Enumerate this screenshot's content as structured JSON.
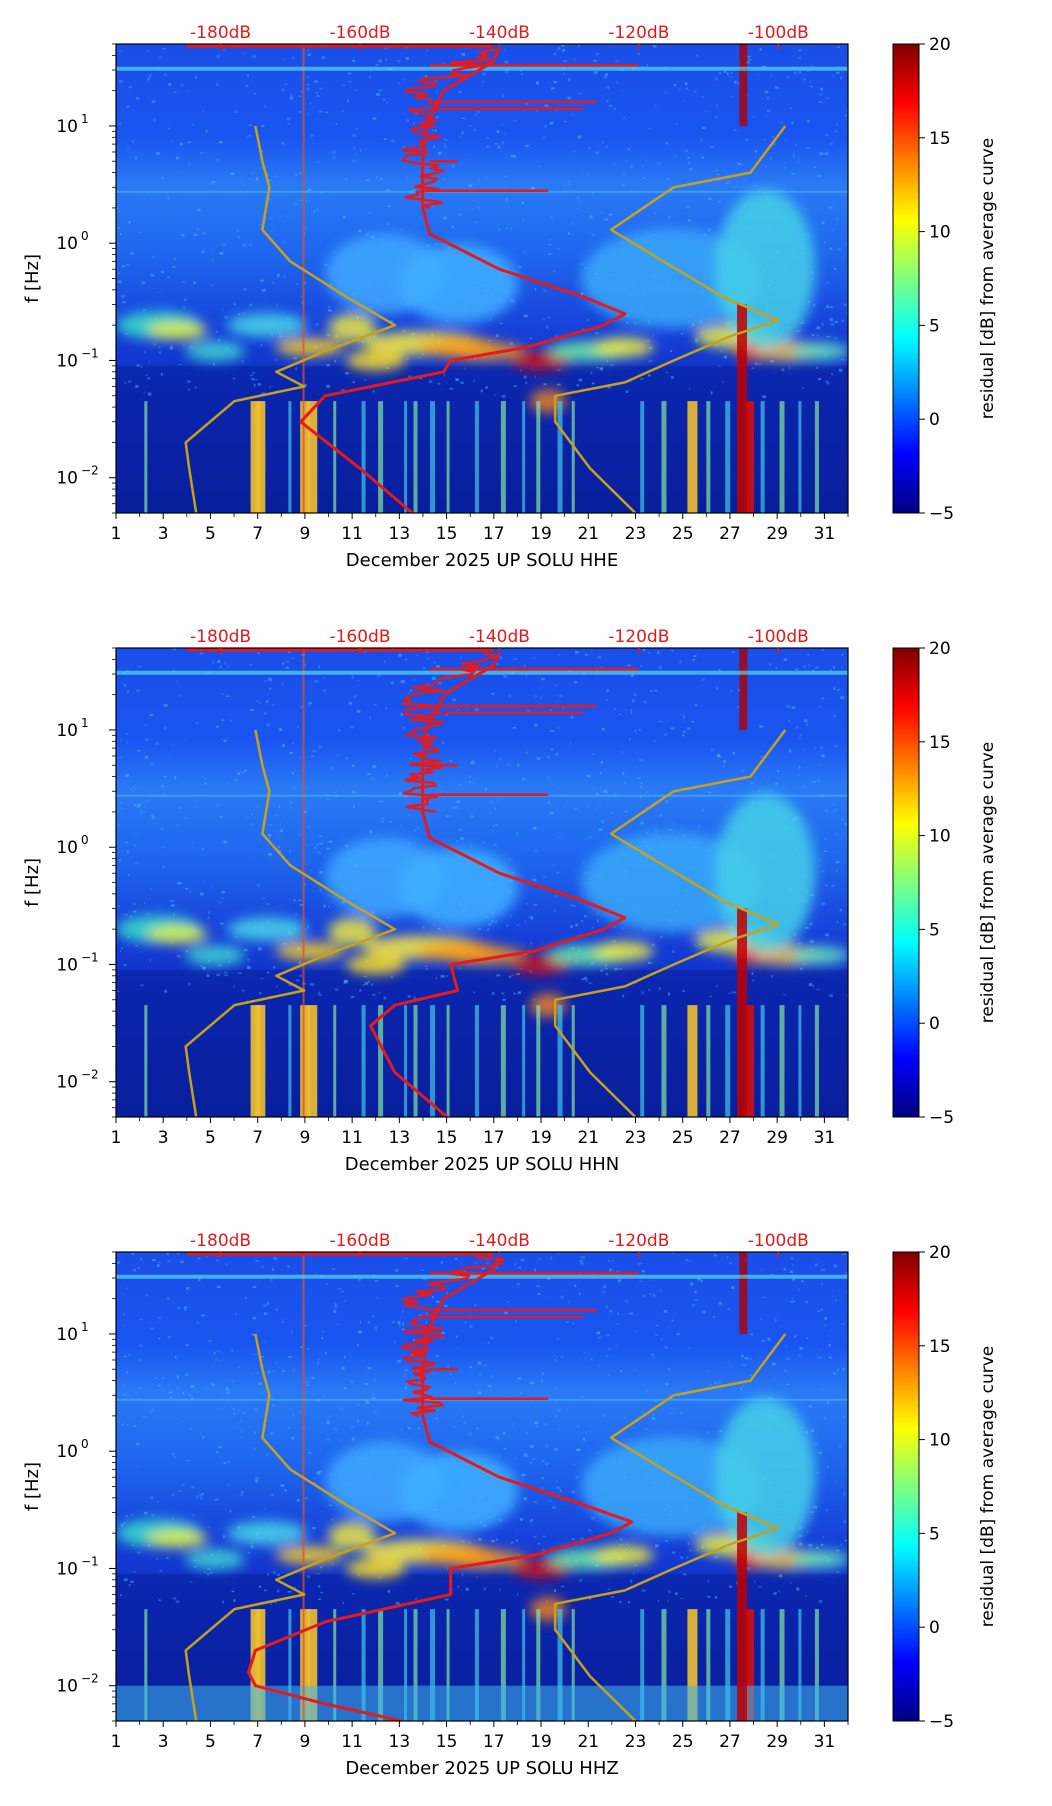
{
  "chart_data": [
    {
      "type": "heatmap",
      "title": "",
      "xlabel": "December 2025 UP SOLU  HHE",
      "ylabel": "f [Hz]",
      "x_ticks": [
        "1",
        "3",
        "5",
        "7",
        "9",
        "11",
        "13",
        "15",
        "17",
        "19",
        "21",
        "23",
        "25",
        "27",
        "29",
        "31"
      ],
      "xlim": [
        1,
        32
      ],
      "ylim": [
        0.005,
        50
      ],
      "y_scale": "log",
      "y_ticks": [
        {
          "base": "10",
          "exp": "−2",
          "value": 0.01
        },
        {
          "base": "10",
          "exp": "−1",
          "value": 0.1
        },
        {
          "base": "10",
          "exp": "0",
          "value": 1
        },
        {
          "base": "10",
          "exp": "1",
          "value": 10
        }
      ],
      "top_axis_labels": [
        "-180dB",
        "-160dB",
        "-140dB",
        "-120dB",
        "-100dB"
      ],
      "colorbar": {
        "label": "residual [dB] from average curve",
        "min": -5,
        "max": 20,
        "ticks": [
          "20",
          "15",
          "10",
          "5",
          "0",
          "−5"
        ],
        "colormap": "jet"
      },
      "series": [
        {
          "name": "average PSD curve (red)",
          "color": "#e41a1c",
          "x_units": "dB",
          "points": [
            {
              "db": -152.5,
              "f": 0.005
            },
            {
              "db": -160,
              "f": 0.012
            },
            {
              "db": -168.5,
              "f": 0.03
            },
            {
              "db": -165,
              "f": 0.05
            },
            {
              "db": -148,
              "f": 0.08
            },
            {
              "db": -147,
              "f": 0.1
            },
            {
              "db": -136,
              "f": 0.13
            },
            {
              "db": -125,
              "f": 0.2
            },
            {
              "db": -122,
              "f": 0.25
            },
            {
              "db": -128,
              "f": 0.35
            },
            {
              "db": -140,
              "f": 0.6
            },
            {
              "db": -150,
              "f": 1.2
            },
            {
              "db": -151,
              "f": 2
            },
            {
              "db": -151,
              "f": 5
            },
            {
              "db": -150.5,
              "f": 10
            },
            {
              "db": -148,
              "f": 20
            },
            {
              "db": -141,
              "f": 35
            },
            {
              "db": -140,
              "f": 45
            }
          ]
        },
        {
          "name": "noise model (olive)",
          "color": "#c4a21e",
          "x_units": "dB",
          "points": [
            {
              "db": -183.5,
              "f": 0.005
            },
            {
              "db": -184.5,
              "f": 0.012
            },
            {
              "db": -185,
              "f": 0.02
            },
            {
              "db": -178,
              "f": 0.045
            },
            {
              "db": -168,
              "f": 0.06
            },
            {
              "db": -172,
              "f": 0.08
            },
            {
              "db": -165,
              "f": 0.12
            },
            {
              "db": -155,
              "f": 0.2
            },
            {
              "db": -162,
              "f": 0.35
            },
            {
              "db": -170,
              "f": 0.7
            },
            {
              "db": -174,
              "f": 1.3
            },
            {
              "db": -173,
              "f": 3
            },
            {
              "db": -174,
              "f": 5
            },
            {
              "db": -175,
              "f": 10
            }
          ]
        },
        {
          "name": "noise model upper (olive)",
          "color": "#c4a21e",
          "x_units": "dB",
          "points": [
            {
              "db": -120.5,
              "f": 0.005
            },
            {
              "db": -127,
              "f": 0.012
            },
            {
              "db": -132,
              "f": 0.03
            },
            {
              "db": -132,
              "f": 0.05
            },
            {
              "db": -122,
              "f": 0.065
            },
            {
              "db": -115,
              "f": 0.1
            },
            {
              "db": -107,
              "f": 0.16
            },
            {
              "db": -100,
              "f": 0.22
            },
            {
              "db": -108,
              "f": 0.35
            },
            {
              "db": -124,
              "f": 1.3
            },
            {
              "db": -115,
              "f": 3
            },
            {
              "db": -104,
              "f": 4
            },
            {
              "db": -99,
              "f": 10
            }
          ]
        }
      ]
    },
    {
      "type": "heatmap",
      "title": "",
      "xlabel": "December 2025 UP SOLU  HHN",
      "ylabel": "f [Hz]",
      "x_ticks": [
        "1",
        "3",
        "5",
        "7",
        "9",
        "11",
        "13",
        "15",
        "17",
        "19",
        "21",
        "23",
        "25",
        "27",
        "29",
        "31"
      ],
      "xlim": [
        1,
        32
      ],
      "ylim": [
        0.005,
        50
      ],
      "y_scale": "log",
      "y_ticks": [
        {
          "base": "10",
          "exp": "−2",
          "value": 0.01
        },
        {
          "base": "10",
          "exp": "−1",
          "value": 0.1
        },
        {
          "base": "10",
          "exp": "0",
          "value": 1
        },
        {
          "base": "10",
          "exp": "1",
          "value": 10
        }
      ],
      "top_axis_labels": [
        "-180dB",
        "-160dB",
        "-140dB",
        "-120dB",
        "-100dB"
      ],
      "colorbar": {
        "label": "residual [dB] from average curve",
        "min": -5,
        "max": 20,
        "ticks": [
          "20",
          "15",
          "10",
          "5",
          "0",
          "−5"
        ],
        "colormap": "jet"
      },
      "series": [
        {
          "name": "average PSD curve (red)",
          "color": "#e41a1c",
          "x_units": "dB",
          "points": [
            {
              "db": -147.5,
              "f": 0.005
            },
            {
              "db": -155,
              "f": 0.012
            },
            {
              "db": -158.5,
              "f": 0.03
            },
            {
              "db": -155,
              "f": 0.045
            },
            {
              "db": -146,
              "f": 0.06
            },
            {
              "db": -147,
              "f": 0.1
            },
            {
              "db": -135,
              "f": 0.13
            },
            {
              "db": -125,
              "f": 0.2
            },
            {
              "db": -122,
              "f": 0.25
            },
            {
              "db": -128,
              "f": 0.35
            },
            {
              "db": -140,
              "f": 0.6
            },
            {
              "db": -150,
              "f": 1.2
            },
            {
              "db": -151,
              "f": 2
            },
            {
              "db": -151,
              "f": 5
            },
            {
              "db": -150.5,
              "f": 10
            },
            {
              "db": -148,
              "f": 20
            },
            {
              "db": -141,
              "f": 35
            },
            {
              "db": -140,
              "f": 45
            }
          ]
        },
        {
          "name": "noise model (olive)",
          "color": "#c4a21e",
          "x_units": "dB",
          "points": [
            {
              "db": -183.5,
              "f": 0.005
            },
            {
              "db": -184.5,
              "f": 0.012
            },
            {
              "db": -185,
              "f": 0.02
            },
            {
              "db": -178,
              "f": 0.045
            },
            {
              "db": -168,
              "f": 0.06
            },
            {
              "db": -172,
              "f": 0.08
            },
            {
              "db": -165,
              "f": 0.12
            },
            {
              "db": -155,
              "f": 0.2
            },
            {
              "db": -162,
              "f": 0.35
            },
            {
              "db": -170,
              "f": 0.7
            },
            {
              "db": -174,
              "f": 1.3
            },
            {
              "db": -173,
              "f": 3
            },
            {
              "db": -174,
              "f": 5
            },
            {
              "db": -175,
              "f": 10
            }
          ]
        },
        {
          "name": "noise model upper (olive)",
          "color": "#c4a21e",
          "x_units": "dB",
          "points": [
            {
              "db": -120.5,
              "f": 0.005
            },
            {
              "db": -127,
              "f": 0.012
            },
            {
              "db": -132,
              "f": 0.03
            },
            {
              "db": -132,
              "f": 0.05
            },
            {
              "db": -122,
              "f": 0.065
            },
            {
              "db": -115,
              "f": 0.1
            },
            {
              "db": -107,
              "f": 0.16
            },
            {
              "db": -100,
              "f": 0.22
            },
            {
              "db": -108,
              "f": 0.35
            },
            {
              "db": -124,
              "f": 1.3
            },
            {
              "db": -115,
              "f": 3
            },
            {
              "db": -104,
              "f": 4
            },
            {
              "db": -99,
              "f": 10
            }
          ]
        }
      ]
    },
    {
      "type": "heatmap",
      "title": "",
      "xlabel": "December 2025 UP SOLU  HHZ",
      "ylabel": "f [Hz]",
      "x_ticks": [
        "1",
        "3",
        "5",
        "7",
        "9",
        "11",
        "13",
        "15",
        "17",
        "19",
        "21",
        "23",
        "25",
        "27",
        "29",
        "31"
      ],
      "xlim": [
        1,
        32
      ],
      "ylim": [
        0.005,
        50
      ],
      "y_scale": "log",
      "y_ticks": [
        {
          "base": "10",
          "exp": "−2",
          "value": 0.01
        },
        {
          "base": "10",
          "exp": "−1",
          "value": 0.1
        },
        {
          "base": "10",
          "exp": "0",
          "value": 1
        },
        {
          "base": "10",
          "exp": "1",
          "value": 10
        }
      ],
      "top_axis_labels": [
        "-180dB",
        "-160dB",
        "-140dB",
        "-120dB",
        "-100dB"
      ],
      "colorbar": {
        "label": "residual [dB] from average curve",
        "min": -5,
        "max": 20,
        "ticks": [
          "20",
          "15",
          "10",
          "5",
          "0",
          "−5"
        ],
        "colormap": "jet"
      },
      "series": [
        {
          "name": "average PSD curve (red)",
          "color": "#e41a1c",
          "x_units": "dB",
          "points": [
            {
              "db": -154,
              "f": 0.005
            },
            {
              "db": -165,
              "f": 0.007
            },
            {
              "db": -175,
              "f": 0.01
            },
            {
              "db": -176,
              "f": 0.013
            },
            {
              "db": -175,
              "f": 0.02
            },
            {
              "db": -165,
              "f": 0.035
            },
            {
              "db": -147,
              "f": 0.06
            },
            {
              "db": -147,
              "f": 0.1
            },
            {
              "db": -135,
              "f": 0.13
            },
            {
              "db": -124,
              "f": 0.2
            },
            {
              "db": -121,
              "f": 0.25
            },
            {
              "db": -128,
              "f": 0.35
            },
            {
              "db": -140,
              "f": 0.6
            },
            {
              "db": -150,
              "f": 1.2
            },
            {
              "db": -151,
              "f": 2
            },
            {
              "db": -151,
              "f": 5
            },
            {
              "db": -150.5,
              "f": 10
            },
            {
              "db": -148,
              "f": 20
            },
            {
              "db": -141,
              "f": 35
            },
            {
              "db": -140,
              "f": 45
            }
          ]
        },
        {
          "name": "noise model (olive)",
          "color": "#c4a21e",
          "x_units": "dB",
          "points": [
            {
              "db": -183.5,
              "f": 0.005
            },
            {
              "db": -184.5,
              "f": 0.012
            },
            {
              "db": -185,
              "f": 0.02
            },
            {
              "db": -178,
              "f": 0.045
            },
            {
              "db": -168,
              "f": 0.06
            },
            {
              "db": -172,
              "f": 0.08
            },
            {
              "db": -165,
              "f": 0.12
            },
            {
              "db": -155,
              "f": 0.2
            },
            {
              "db": -162,
              "f": 0.35
            },
            {
              "db": -170,
              "f": 0.7
            },
            {
              "db": -174,
              "f": 1.3
            },
            {
              "db": -173,
              "f": 3
            },
            {
              "db": -174,
              "f": 5
            },
            {
              "db": -175,
              "f": 10
            }
          ]
        },
        {
          "name": "noise model upper (olive)",
          "color": "#c4a21e",
          "x_units": "dB",
          "points": [
            {
              "db": -120.5,
              "f": 0.005
            },
            {
              "db": -127,
              "f": 0.012
            },
            {
              "db": -132,
              "f": 0.03
            },
            {
              "db": -132,
              "f": 0.05
            },
            {
              "db": -122,
              "f": 0.065
            },
            {
              "db": -115,
              "f": 0.1
            },
            {
              "db": -107,
              "f": 0.16
            },
            {
              "db": -100,
              "f": 0.22
            },
            {
              "db": -108,
              "f": 0.35
            },
            {
              "db": -124,
              "f": 1.3
            },
            {
              "db": -115,
              "f": 3
            },
            {
              "db": -104,
              "f": 4
            },
            {
              "db": -99,
              "f": 10
            }
          ]
        }
      ]
    }
  ],
  "colors": {
    "top_label_color": "#e31a1c",
    "heatmap_background": "#0b2fc8",
    "average_curve": "#e41a1c",
    "noise_model": "#c4a21e"
  }
}
